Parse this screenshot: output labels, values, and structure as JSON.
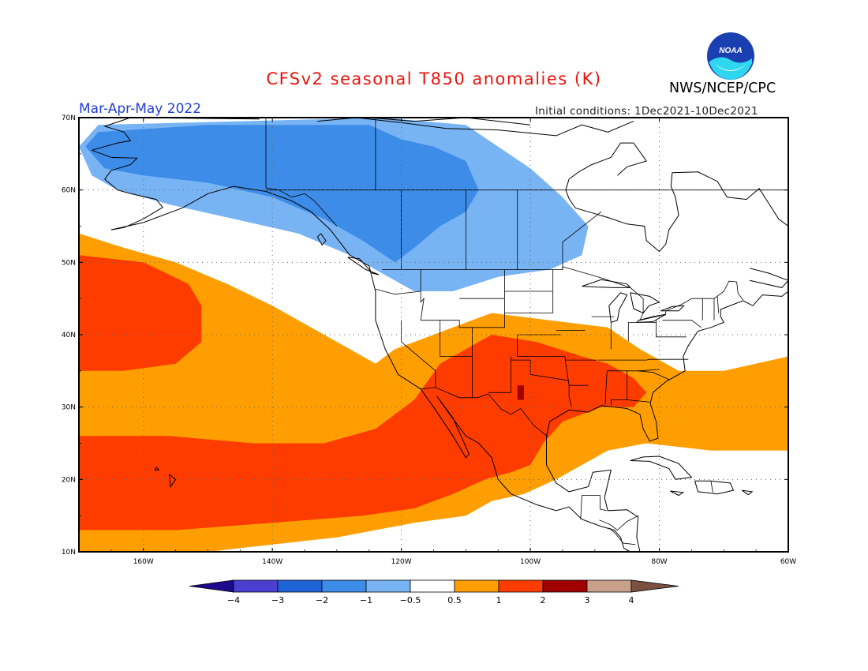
{
  "header": {
    "title": "CFSv2 seasonal T850 anomalies (K)",
    "agency": "NWS/NCEP/CPC",
    "season": "Mar-Apr-May 2022",
    "initial_conditions": "Initial conditions: 1Dec2021-10Dec2021",
    "logo_text": "NOAA"
  },
  "map": {
    "lon_range": [
      -170,
      -60
    ],
    "lat_range": [
      10,
      70
    ],
    "lon_ticks": [
      {
        "value": -160,
        "label": "160W"
      },
      {
        "value": -140,
        "label": "140W"
      },
      {
        "value": -120,
        "label": "120W"
      },
      {
        "value": -100,
        "label": "100W"
      },
      {
        "value": -80,
        "label": "80W"
      },
      {
        "value": -60,
        "label": "60W"
      }
    ],
    "lat_ticks": [
      {
        "value": 10,
        "label": "10N"
      },
      {
        "value": 20,
        "label": "20N"
      },
      {
        "value": 30,
        "label": "30N"
      },
      {
        "value": 40,
        "label": "40N"
      },
      {
        "value": 50,
        "label": "50N"
      },
      {
        "value": 60,
        "label": "60N"
      },
      {
        "value": 70,
        "label": "70N"
      }
    ],
    "grid": true
  },
  "colorbar": {
    "labels": [
      "-4",
      "-3",
      "-2",
      "-1",
      "-0.5",
      "0.5",
      "1",
      "2",
      "3",
      "4"
    ],
    "colors": [
      "#1e0a8c",
      "#4a3fd0",
      "#1e64d6",
      "#3c8ce8",
      "#78b4f4",
      "#ffffff",
      "#ff9e00",
      "#ff3c00",
      "#a00000",
      "#c8a08c",
      "#7a5040"
    ]
  },
  "anomaly_regions": [
    {
      "level": "-1",
      "color": "#78b4f4",
      "outline": [
        [
          -167,
          69
        ],
        [
          -123,
          70
        ],
        [
          -110,
          69
        ],
        [
          -105,
          66
        ],
        [
          -100,
          63
        ],
        [
          -95,
          59
        ],
        [
          -91,
          55
        ],
        [
          -92,
          51
        ],
        [
          -97,
          49
        ],
        [
          -105,
          48
        ],
        [
          -112,
          46
        ],
        [
          -118,
          46
        ],
        [
          -122,
          48
        ],
        [
          -128,
          51
        ],
        [
          -136,
          54
        ],
        [
          -146,
          56
        ],
        [
          -156,
          58
        ],
        [
          -164,
          60
        ],
        [
          -168,
          62
        ],
        [
          -170,
          66
        ]
      ]
    },
    {
      "level": "-2",
      "color": "#3c8ce8",
      "outline": [
        [
          -167,
          68
        ],
        [
          -150,
          69
        ],
        [
          -135,
          69
        ],
        [
          -125,
          69
        ],
        [
          -120,
          67
        ],
        [
          -115,
          66
        ],
        [
          -110,
          64
        ],
        [
          -108,
          60
        ],
        [
          -110,
          57
        ],
        [
          -114,
          55
        ],
        [
          -118,
          52
        ],
        [
          -121,
          50
        ],
        [
          -126,
          53
        ],
        [
          -132,
          56
        ],
        [
          -140,
          59
        ],
        [
          -150,
          61
        ],
        [
          -160,
          62
        ],
        [
          -166,
          63
        ],
        [
          -169,
          66
        ]
      ]
    },
    {
      "level": "0.5",
      "color": "#ff9e00",
      "outline": [
        [
          -170,
          54
        ],
        [
          -163,
          52
        ],
        [
          -155,
          50
        ],
        [
          -147,
          47
        ],
        [
          -140,
          44
        ],
        [
          -134,
          41
        ],
        [
          -128,
          38
        ],
        [
          -124,
          36
        ],
        [
          -121,
          38
        ],
        [
          -118,
          39
        ],
        [
          -112,
          41
        ],
        [
          -106,
          43
        ],
        [
          -97,
          42
        ],
        [
          -88,
          41
        ],
        [
          -83,
          38
        ],
        [
          -77,
          35
        ],
        [
          -70,
          35
        ],
        [
          -60,
          37
        ],
        [
          -60,
          24
        ],
        [
          -72,
          24
        ],
        [
          -82,
          25
        ],
        [
          -88,
          24
        ],
        [
          -92,
          22
        ],
        [
          -96,
          20
        ],
        [
          -101,
          18
        ],
        [
          -106,
          17
        ],
        [
          -110,
          15
        ],
        [
          -118,
          14
        ],
        [
          -130,
          12
        ],
        [
          -140,
          11
        ],
        [
          -150,
          10
        ],
        [
          -160,
          10
        ],
        [
          -170,
          10
        ]
      ]
    },
    {
      "level": "1",
      "color": "#ff3c00",
      "outline": [
        [
          -170,
          51
        ],
        [
          -160,
          50
        ],
        [
          -153,
          47
        ],
        [
          -151,
          44
        ],
        [
          -151,
          39
        ],
        [
          -155,
          36
        ],
        [
          -163,
          35
        ],
        [
          -170,
          35
        ]
      ]
    },
    {
      "level": "1",
      "color": "#ff3c00",
      "outline": [
        [
          -170,
          26
        ],
        [
          -156,
          26
        ],
        [
          -143,
          25
        ],
        [
          -132,
          25
        ],
        [
          -124,
          27
        ],
        [
          -118,
          31
        ],
        [
          -114,
          36
        ],
        [
          -110,
          38
        ],
        [
          -106,
          40
        ],
        [
          -99,
          39
        ],
        [
          -92,
          37
        ],
        [
          -88,
          36
        ],
        [
          -84,
          34
        ],
        [
          -82,
          32
        ],
        [
          -84,
          30
        ],
        [
          -89,
          30
        ],
        [
          -95,
          28
        ],
        [
          -98,
          25
        ],
        [
          -100,
          22
        ],
        [
          -103,
          21
        ],
        [
          -107,
          20
        ],
        [
          -112,
          18
        ],
        [
          -118,
          16
        ],
        [
          -126,
          15
        ],
        [
          -140,
          14
        ],
        [
          -155,
          13
        ],
        [
          -170,
          13
        ]
      ]
    },
    {
      "level": "2",
      "color": "#a00000",
      "outline": [
        [
          -102,
          33
        ],
        [
          -101,
          33
        ],
        [
          -101,
          31
        ],
        [
          -102,
          31
        ]
      ]
    }
  ]
}
